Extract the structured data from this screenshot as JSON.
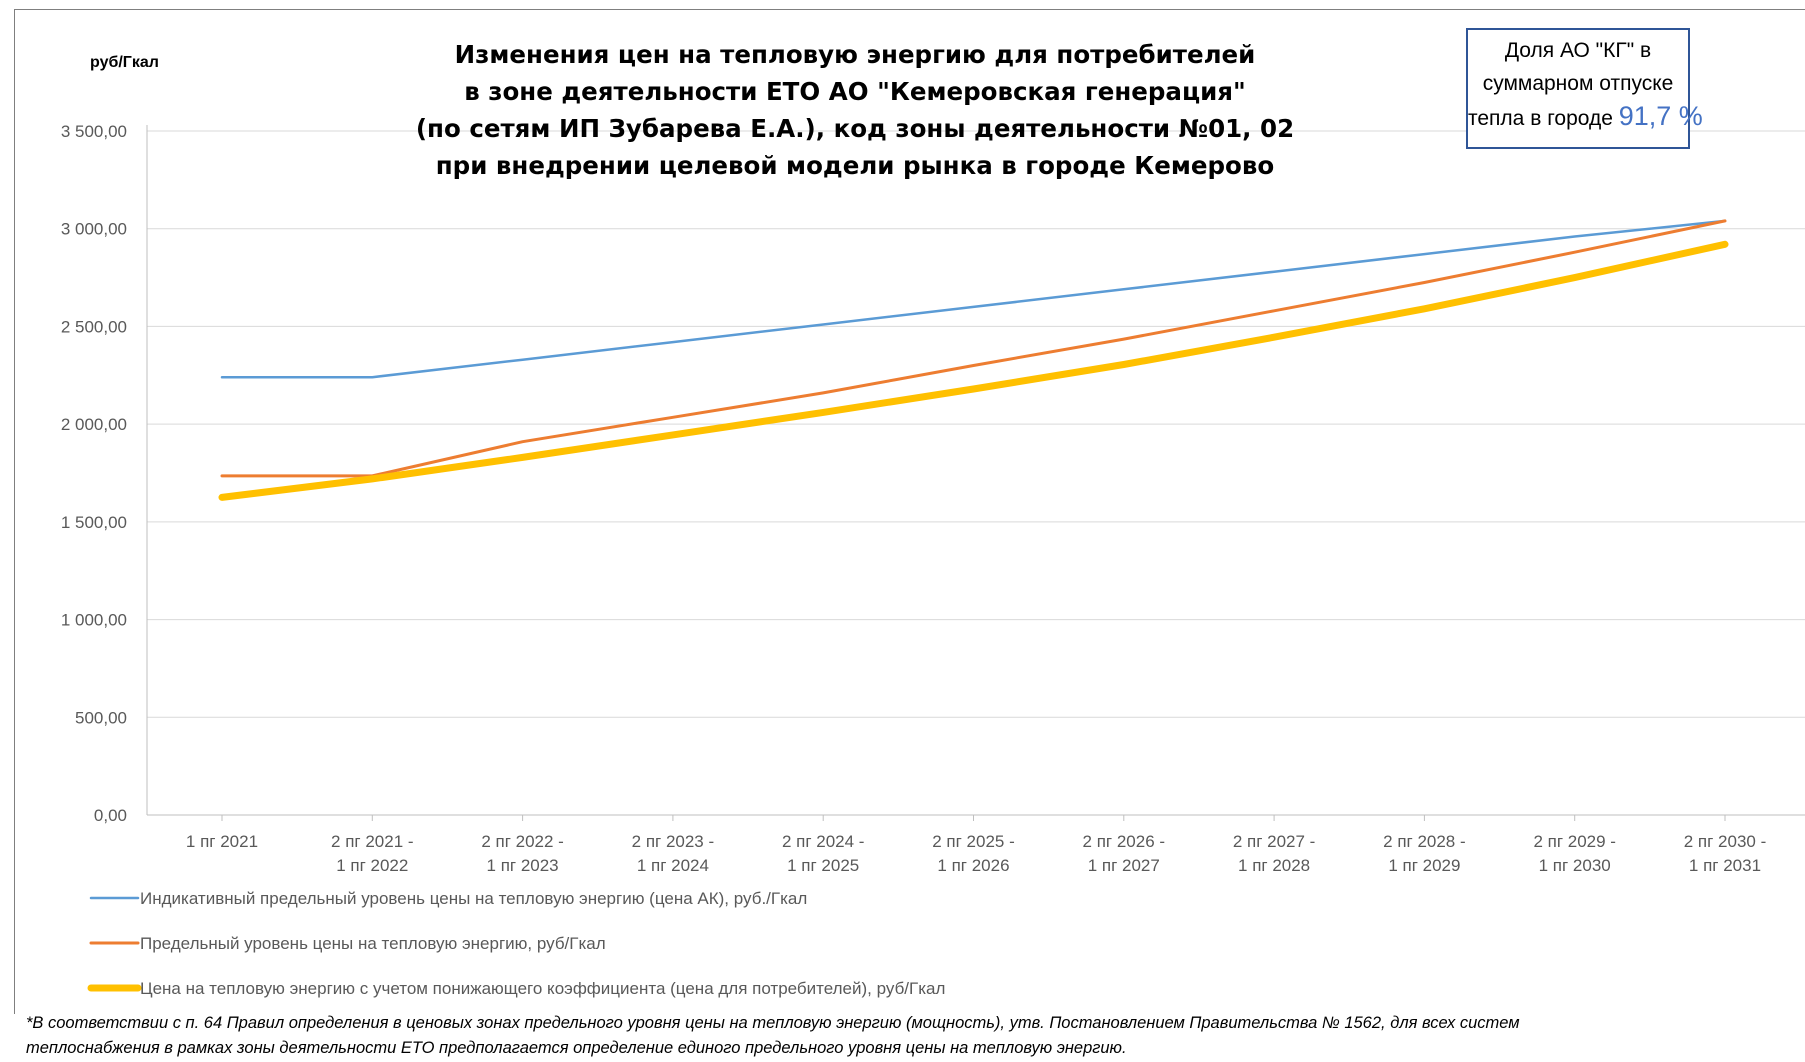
{
  "chart_data": {
    "type": "line",
    "title_lines": [
      "Изменения цен на тепловую энергию для потребителей",
      "в зоне деятельности ЕТО АО \"Кемеровская генерация\"",
      "(по сетям ИП Зубарева Е.А.), код зоны деятельности №01, 02",
      "при внедрении целевой модели рынка в городе Кемерово"
    ],
    "ylabel": "руб/Гкал",
    "ylim": [
      0,
      3500
    ],
    "yticks": [
      "0,00",
      "500,00",
      "1 000,00",
      "1 500,00",
      "2 000,00",
      "2 500,00",
      "3 000,00",
      "3 500,00"
    ],
    "grid": true,
    "categories": [
      [
        "1 пг 2021"
      ],
      [
        "2 пг 2021 -",
        "1 пг 2022"
      ],
      [
        "2 пг 2022 -",
        "1 пг 2023"
      ],
      [
        "2 пг 2023 -",
        "1 пг 2024"
      ],
      [
        "2 пг 2024 -",
        "1 пг 2025"
      ],
      [
        "2 пг 2025 -",
        "1 пг 2026"
      ],
      [
        "2 пг 2026 -",
        "1 пг 2027"
      ],
      [
        "2 пг 2027 -",
        "1 пг 2028"
      ],
      [
        "2 пг 2028 -",
        "1 пг 2029"
      ],
      [
        "2 пг 2029 -",
        "1 пг 2030"
      ],
      [
        "2 пг 2030 -",
        "1 пг 2031"
      ]
    ],
    "series": [
      {
        "name": "Индикативный предельный уровень цены на тепловую энергию  (цена АК), руб./Гкал",
        "color": "#5b9bd5",
        "values": [
          2240,
          2240,
          2330,
          2420,
          2510,
          2600,
          2690,
          2780,
          2870,
          2960,
          3040
        ]
      },
      {
        "name": "Предельный уровень цены на тепловую энергию, руб/Гкал",
        "color": "#ed7d31",
        "values": [
          1735,
          1735,
          1910,
          2035,
          2160,
          2300,
          2435,
          2580,
          2725,
          2880,
          3040
        ]
      },
      {
        "name": "Цена на тепловую энергию с учетом понижающего коэффициента (цена для потребителей), руб/Гкал",
        "color": "#ffc000",
        "values": [
          1625,
          1720,
          1830,
          1945,
          2060,
          2180,
          2305,
          2445,
          2590,
          2750,
          2920
        ]
      }
    ],
    "legend_position": "bottom"
  },
  "info_box": {
    "line1": "Доля  АО \"КГ\" в",
    "line2": "суммарном отпуске",
    "line3_prefix": "тепла в городе",
    "line3_value": "91,7 %"
  },
  "footnote": {
    "line1": "*В соответствии с п. 64 Правил определения в ценовых зонах предельного уровня цены на тепловую энергию (мощность), утв. Постановлением Правительства № 1562, для всех систем",
    "line2": "теплоснабжения в рамках зоны деятельности ЕТО предполагается определение единого предельного уровня цены на тепловую энергию."
  }
}
